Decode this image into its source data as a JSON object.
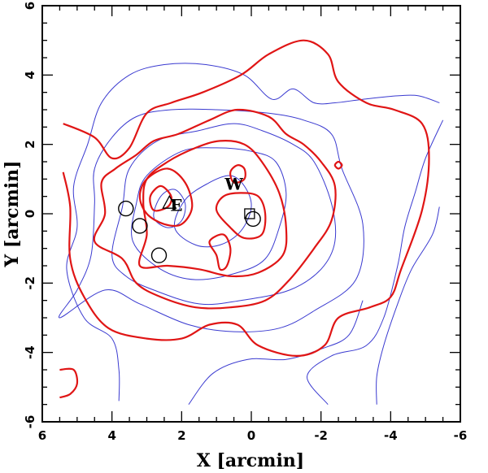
{
  "chart_data": {
    "type": "contour",
    "xlabel": "X [arcmin]",
    "ylabel": "Y [arcmin]",
    "xlim": [
      6,
      -6
    ],
    "ylim": [
      -6,
      6
    ],
    "xticks": [
      6,
      4,
      2,
      0,
      -2,
      -4,
      -6
    ],
    "yticks": [
      -6,
      -4,
      -2,
      0,
      2,
      4,
      6
    ],
    "grid": false,
    "legend": "none",
    "colors": {
      "red": "#e01515",
      "blue": "#3a3ad0",
      "axis": "#000000"
    },
    "series": [
      {
        "color": "blue",
        "contours": [
          [
            [
              3.8,
              -5.4
            ],
            [
              3.8,
              -4.5
            ],
            [
              4.0,
              -3.6
            ],
            [
              4.8,
              -3.0
            ],
            [
              5.3,
              -1.6
            ],
            [
              5.0,
              -0.4
            ],
            [
              5.1,
              0.8
            ],
            [
              4.7,
              2.0
            ],
            [
              4.3,
              3.2
            ],
            [
              3.5,
              4.0
            ],
            [
              2.5,
              4.3
            ],
            [
              1.3,
              4.3
            ],
            [
              0.2,
              4.0
            ],
            [
              -0.6,
              3.3
            ],
            [
              -1.2,
              3.6
            ],
            [
              -1.8,
              3.2
            ],
            [
              -2.4,
              3.2
            ],
            [
              -3.2,
              3.3
            ],
            [
              -4.2,
              3.4
            ],
            [
              -4.8,
              3.4
            ],
            [
              -5.4,
              3.2
            ]
          ],
          [
            [
              5.5,
              -3.0
            ],
            [
              5.0,
              -2.2
            ],
            [
              4.6,
              -1.2
            ],
            [
              4.5,
              0.3
            ],
            [
              4.5,
              1.3
            ],
            [
              4.0,
              2.2
            ],
            [
              3.3,
              2.8
            ],
            [
              2.3,
              3.0
            ],
            [
              1.0,
              3.0
            ],
            [
              -0.5,
              2.9
            ],
            [
              -1.5,
              2.7
            ],
            [
              -2.3,
              2.3
            ],
            [
              -2.6,
              1.3
            ],
            [
              -3.2,
              -0.3
            ],
            [
              -3.0,
              -1.9
            ],
            [
              -1.8,
              -2.8
            ],
            [
              -0.8,
              -3.3
            ],
            [
              0.5,
              -3.4
            ],
            [
              1.8,
              -3.2
            ],
            [
              3.2,
              -2.6
            ],
            [
              4.2,
              -2.2
            ],
            [
              5.5,
              -3.0
            ]
          ],
          [
            [
              4.0,
              -1.2
            ],
            [
              3.7,
              0.2
            ],
            [
              3.5,
              1.3
            ],
            [
              2.7,
              2.1
            ],
            [
              1.5,
              2.4
            ],
            [
              0.5,
              2.6
            ],
            [
              -0.3,
              2.4
            ],
            [
              -1.2,
              2.0
            ],
            [
              -1.8,
              1.5
            ],
            [
              -2.3,
              0.3
            ],
            [
              -2.4,
              -0.8
            ],
            [
              -2.0,
              -1.6
            ],
            [
              -1.1,
              -2.2
            ],
            [
              0.3,
              -2.5
            ],
            [
              1.5,
              -2.6
            ],
            [
              2.8,
              -2.2
            ],
            [
              3.6,
              -1.8
            ],
            [
              4.0,
              -1.2
            ]
          ],
          [
            [
              3.4,
              -0.8
            ],
            [
              3.3,
              0.3
            ],
            [
              3.0,
              1.1
            ],
            [
              2.0,
              1.8
            ],
            [
              1.0,
              1.9
            ],
            [
              0.0,
              1.8
            ],
            [
              -0.7,
              1.5
            ],
            [
              -1.0,
              0.6
            ],
            [
              -0.8,
              -0.4
            ],
            [
              -0.4,
              -1.3
            ],
            [
              0.4,
              -1.7
            ],
            [
              1.6,
              -1.9
            ],
            [
              2.6,
              -1.6
            ],
            [
              3.4,
              -0.8
            ]
          ],
          [
            [
              2.2,
              -0.4
            ],
            [
              1.9,
              0.4
            ],
            [
              1.2,
              0.9
            ],
            [
              0.6,
              1.1
            ],
            [
              0.2,
              0.8
            ],
            [
              0.0,
              0.2
            ],
            [
              0.3,
              -0.5
            ],
            [
              0.9,
              -0.9
            ],
            [
              1.6,
              -0.9
            ],
            [
              2.2,
              -0.4
            ]
          ],
          [
            [
              2.8,
              -0.1
            ],
            [
              2.6,
              0.5
            ],
            [
              2.2,
              0.7
            ],
            [
              1.9,
              0.3
            ],
            [
              2.0,
              -0.2
            ],
            [
              2.4,
              -0.4
            ],
            [
              2.8,
              -0.1
            ]
          ],
          [
            [
              -2.2,
              -5.5
            ],
            [
              -1.6,
              -4.7
            ],
            [
              -2.3,
              -4.1
            ],
            [
              -3.3,
              -3.8
            ],
            [
              -3.8,
              -3.0
            ],
            [
              -4.2,
              -1.5
            ],
            [
              -4.4,
              -0.4
            ],
            [
              -4.7,
              0.6
            ],
            [
              -5.0,
              1.6
            ],
            [
              -5.5,
              2.7
            ]
          ],
          [
            [
              1.8,
              -5.5
            ],
            [
              1.1,
              -4.6
            ],
            [
              0.1,
              -4.2
            ],
            [
              -1.0,
              -4.2
            ],
            [
              -2.0,
              -3.9
            ],
            [
              -2.8,
              -3.5
            ],
            [
              -3.2,
              -2.5
            ]
          ],
          [
            [
              -3.6,
              -5.5
            ],
            [
              -3.6,
              -4.7
            ],
            [
              -3.8,
              -3.8
            ],
            [
              -4.2,
              -2.6
            ],
            [
              -4.6,
              -1.6
            ],
            [
              -5.2,
              -0.6
            ],
            [
              -5.4,
              0.2
            ]
          ]
        ]
      },
      {
        "color": "red",
        "contours": [
          [
            [
              5.4,
              2.6
            ],
            [
              4.5,
              2.2
            ],
            [
              4.0,
              1.6
            ],
            [
              3.5,
              1.9
            ],
            [
              3.0,
              2.9
            ],
            [
              2.3,
              3.2
            ],
            [
              1.4,
              3.5
            ],
            [
              0.3,
              4.0
            ],
            [
              -0.5,
              4.6
            ],
            [
              -1.5,
              5.0
            ],
            [
              -2.2,
              4.6
            ],
            [
              -2.5,
              3.8
            ],
            [
              -3.3,
              3.2
            ],
            [
              -4.1,
              3.0
            ],
            [
              -4.9,
              2.6
            ],
            [
              -5.1,
              1.6
            ],
            [
              -4.9,
              0.1
            ],
            [
              -4.3,
              -1.6
            ],
            [
              -4.0,
              -2.4
            ],
            [
              -3.4,
              -2.7
            ],
            [
              -2.5,
              -3.0
            ],
            [
              -2.1,
              -3.8
            ],
            [
              -1.3,
              -4.1
            ],
            [
              -0.2,
              -3.8
            ],
            [
              0.4,
              -3.2
            ],
            [
              1.2,
              -3.2
            ],
            [
              2.0,
              -3.6
            ],
            [
              3.0,
              -3.6
            ],
            [
              4.1,
              -3.3
            ],
            [
              4.8,
              -2.4
            ],
            [
              5.2,
              -1.3
            ],
            [
              5.2,
              0.2
            ],
            [
              5.4,
              1.2
            ]
          ],
          [
            [
              4.5,
              -0.8
            ],
            [
              4.2,
              0.0
            ],
            [
              4.3,
              0.9
            ],
            [
              3.9,
              1.3
            ],
            [
              3.3,
              1.7
            ],
            [
              2.8,
              2.1
            ],
            [
              2.1,
              2.3
            ],
            [
              1.2,
              2.7
            ],
            [
              0.4,
              3.0
            ],
            [
              -0.5,
              2.8
            ],
            [
              -1.0,
              2.3
            ],
            [
              -1.5,
              2.0
            ],
            [
              -2.0,
              1.5
            ],
            [
              -2.4,
              0.8
            ],
            [
              -2.3,
              -0.2
            ],
            [
              -1.8,
              -1.0
            ],
            [
              -1.1,
              -1.9
            ],
            [
              -0.4,
              -2.5
            ],
            [
              0.6,
              -2.7
            ],
            [
              1.6,
              -2.7
            ],
            [
              2.6,
              -2.4
            ],
            [
              3.3,
              -2.0
            ],
            [
              3.7,
              -1.3
            ],
            [
              4.5,
              -0.8
            ]
          ],
          [
            [
              3.2,
              -1.5
            ],
            [
              3.0,
              -0.6
            ],
            [
              3.1,
              0.3
            ],
            [
              3.0,
              1.0
            ],
            [
              2.4,
              1.5
            ],
            [
              1.6,
              1.9
            ],
            [
              0.9,
              2.1
            ],
            [
              0.2,
              2.0
            ],
            [
              -0.3,
              1.5
            ],
            [
              -0.8,
              0.6
            ],
            [
              -1.0,
              -0.4
            ],
            [
              -0.9,
              -1.2
            ],
            [
              -0.2,
              -1.7
            ],
            [
              0.6,
              -1.8
            ],
            [
              1.5,
              -1.6
            ],
            [
              2.4,
              -1.5
            ],
            [
              3.2,
              -1.5
            ]
          ],
          [
            [
              3.2,
              0.5
            ],
            [
              3.0,
              1.0
            ],
            [
              2.4,
              1.3
            ],
            [
              1.9,
              0.9
            ],
            [
              1.7,
              0.2
            ],
            [
              2.0,
              -0.3
            ],
            [
              2.5,
              -0.3
            ],
            [
              3.0,
              0.0
            ],
            [
              3.2,
              0.5
            ]
          ],
          [
            [
              2.9,
              0.5
            ],
            [
              2.6,
              0.8
            ],
            [
              2.3,
              0.5
            ],
            [
              2.4,
              0.2
            ],
            [
              2.8,
              0.1
            ],
            [
              2.9,
              0.5
            ]
          ],
          [
            [
              1.0,
              0.1
            ],
            [
              0.8,
              0.5
            ],
            [
              0.3,
              0.6
            ],
            [
              -0.2,
              0.5
            ],
            [
              -0.4,
              0.0
            ],
            [
              -0.3,
              -0.6
            ],
            [
              0.2,
              -0.7
            ],
            [
              0.6,
              -0.4
            ],
            [
              1.0,
              0.1
            ]
          ],
          [
            [
              1.2,
              -0.8
            ],
            [
              1.0,
              -1.2
            ],
            [
              0.9,
              -1.6
            ],
            [
              0.7,
              -1.5
            ],
            [
              0.6,
              -1.0
            ],
            [
              0.8,
              -0.6
            ],
            [
              1.2,
              -0.8
            ]
          ],
          [
            [
              0.6,
              1.2
            ],
            [
              0.4,
              1.4
            ],
            [
              0.2,
              1.3
            ],
            [
              0.2,
              1.0
            ],
            [
              0.5,
              0.9
            ],
            [
              0.6,
              1.2
            ]
          ],
          [
            [
              -2.5,
              1.5
            ],
            [
              -2.6,
              1.4
            ],
            [
              -2.5,
              1.3
            ],
            [
              -2.4,
              1.4
            ],
            [
              -2.5,
              1.5
            ]
          ],
          [
            [
              5.5,
              -4.5
            ],
            [
              5.1,
              -4.5
            ],
            [
              5.0,
              -4.9
            ],
            [
              5.2,
              -5.2
            ],
            [
              5.5,
              -5.3
            ]
          ]
        ]
      }
    ],
    "markers": [
      {
        "shape": "circle",
        "x": 3.6,
        "y": 0.15
      },
      {
        "shape": "circle",
        "x": 3.2,
        "y": -0.35
      },
      {
        "shape": "circle",
        "x": 2.65,
        "y": -1.2
      },
      {
        "shape": "circle",
        "x": -0.05,
        "y": -0.15
      },
      {
        "shape": "square",
        "x": 0.05,
        "y": 0.0
      },
      {
        "shape": "triangle",
        "x": 2.35,
        "y": 0.3
      }
    ],
    "annotations": [
      {
        "text": "E",
        "x": 2.15,
        "y": 0.25
      },
      {
        "text": "W",
        "x": 0.5,
        "y": 0.85
      }
    ]
  }
}
